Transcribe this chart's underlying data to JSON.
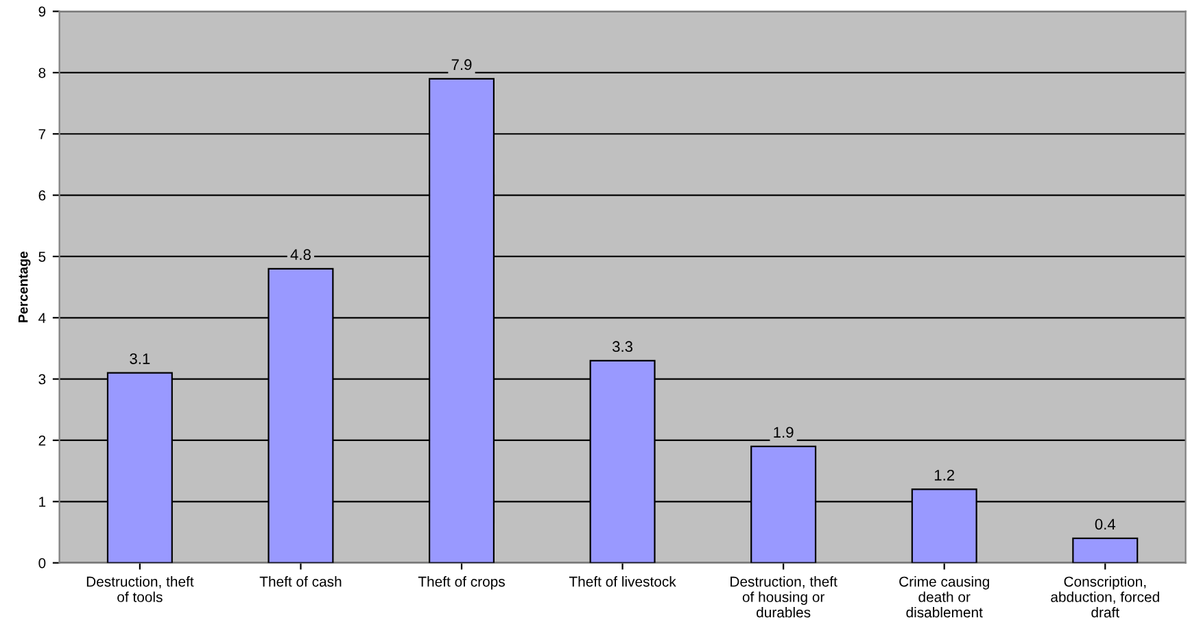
{
  "chart_data": {
    "type": "bar",
    "ylabel": "Percentage",
    "categories": [
      "Destruction, theft\nof tools",
      "Theft of cash",
      "Theft of crops",
      "Theft of livestock",
      "Destruction, theft\nof housing or\ndurables",
      "Crime causing\ndeath or\ndisablement",
      "Conscription,\nabduction, forced\ndraft"
    ],
    "values": [
      3.1,
      4.8,
      7.9,
      3.3,
      1.9,
      1.2,
      0.4
    ],
    "color": "#9999ff",
    "ylim": [
      0,
      9
    ],
    "yticks": [
      0,
      1,
      2,
      3,
      4,
      5,
      6,
      7,
      8,
      9
    ],
    "grid": "y",
    "data_labels": true
  }
}
